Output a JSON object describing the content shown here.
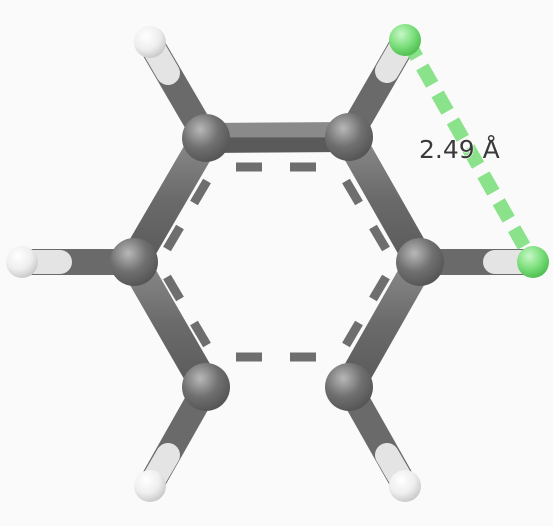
{
  "molecule": {
    "name": "benzene",
    "colors": {
      "background": "#fafafa",
      "carbon": "#6e6e6e",
      "carbon_highlight": "#a8a8a8",
      "hydrogen": "#ededed",
      "hydrogen_selected": "#6ee06e",
      "bond": "#6a6a6a",
      "aromatic_dash": "#6e6e6e"
    }
  },
  "measurement": {
    "label": "2.49 Å",
    "distance": 2.49,
    "unit": "Å",
    "color": "#7ee07e"
  }
}
